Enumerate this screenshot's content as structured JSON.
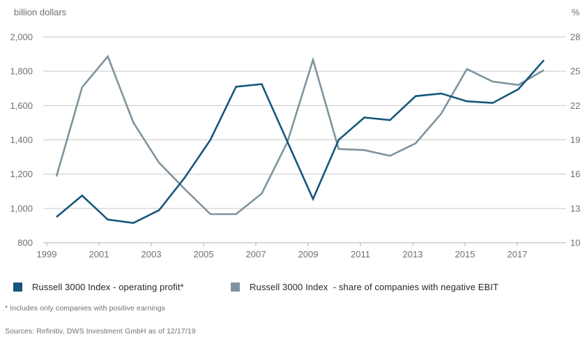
{
  "units": {
    "left": "billion dollars",
    "right": "%"
  },
  "chart_data": {
    "type": "line",
    "title": "",
    "x": [
      1999,
      2000,
      2001,
      2002,
      2003,
      2004,
      2005,
      2006,
      2007,
      2008,
      2009,
      2010,
      2011,
      2012,
      2013,
      2014,
      2015,
      2016,
      2017,
      2018
    ],
    "series": [
      {
        "name": "Russell 3000 Index - operating profit*",
        "axis": "left",
        "color": "#15567a",
        "values": [
          950,
          1075,
          935,
          915,
          990,
          1180,
          1400,
          1710,
          1725,
          1390,
          1055,
          1400,
          1530,
          1515,
          1655,
          1670,
          1625,
          1615,
          1695,
          1865
        ]
      },
      {
        "name": "Russell 3000 Index  - share of companies with negative EBIT",
        "axis": "right",
        "color": "#7e939d",
        "values": [
          15.8,
          23.6,
          26.3,
          20.5,
          17.0,
          14.7,
          12.5,
          12.5,
          14.3,
          18.8,
          26.0,
          18.2,
          18.1,
          17.6,
          18.7,
          21.3,
          25.2,
          24.1,
          23.8,
          25.1
        ]
      }
    ],
    "left_axis": {
      "label": "billion dollars",
      "min": 800,
      "max": 2000,
      "ticks": [
        800,
        1000,
        1200,
        1400,
        1600,
        1800,
        2000
      ],
      "tick_labels": [
        "800",
        "1,000",
        "1,200",
        "1,400",
        "1,600",
        "1,800",
        "2,000"
      ]
    },
    "right_axis": {
      "label": "%",
      "min": 10,
      "max": 28,
      "ticks": [
        10,
        13,
        16,
        19,
        22,
        25,
        28
      ],
      "tick_labels": [
        "10",
        "13",
        "16",
        "19",
        "22",
        "25",
        "28"
      ]
    },
    "x_axis": {
      "tick_years": [
        1999,
        2001,
        2003,
        2005,
        2007,
        2009,
        2011,
        2013,
        2015,
        2017
      ]
    },
    "grid": true,
    "legend_position": "bottom",
    "colors": {
      "grid": "#c9c9c9",
      "axis": "#b2b2b2",
      "tick_text": "#6f7072"
    }
  },
  "footnote": "* Includes only companies with positive earnings",
  "sources": "Sources: Refinitiv, DWS Investment GmbH as of 12/17/19"
}
